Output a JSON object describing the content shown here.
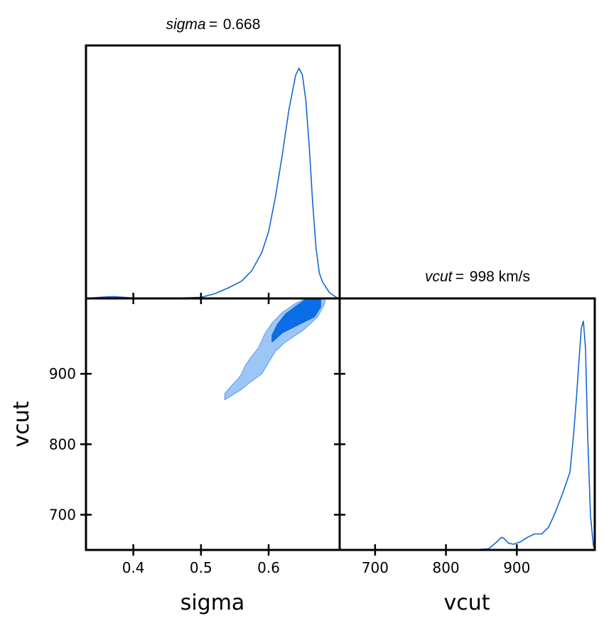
{
  "chart_data": {
    "type": "triangle-corner-plot",
    "parameters": [
      "sigma",
      "vcut"
    ],
    "colors": {
      "line": "#1565d8",
      "inner_contour": "#0a6ee6",
      "outer_contour": "#9cc6f5",
      "frame": "#000000"
    },
    "panels": [
      {
        "id": "sigma-marginal",
        "type": "line",
        "parameter": "sigma",
        "title": {
          "symbol": "sigma",
          "equals": "=",
          "value": "0.668"
        },
        "xlim": [
          0.33,
          0.705
        ],
        "ylim": [
          0,
          1.0
        ],
        "x": [
          0.33,
          0.35,
          0.37,
          0.39,
          0.4,
          0.45,
          0.5,
          0.52,
          0.54,
          0.56,
          0.575,
          0.59,
          0.6,
          0.61,
          0.62,
          0.63,
          0.64,
          0.645,
          0.65,
          0.655,
          0.66,
          0.665,
          0.67,
          0.675,
          0.68,
          0.69,
          0.7,
          0.705
        ],
        "y": [
          0.0,
          0.005,
          0.008,
          0.004,
          0.002,
          0.0,
          0.005,
          0.02,
          0.045,
          0.075,
          0.12,
          0.2,
          0.29,
          0.44,
          0.62,
          0.82,
          0.97,
          1.0,
          0.97,
          0.86,
          0.66,
          0.42,
          0.22,
          0.11,
          0.07,
          0.025,
          0.005,
          0.0
        ]
      },
      {
        "id": "sigma-vcut-joint",
        "type": "contour",
        "x_parameter": "sigma",
        "y_parameter": "vcut",
        "xlim": [
          0.33,
          0.705
        ],
        "ylim": [
          650,
          1007
        ],
        "x_ticks": [
          "0.4",
          "0.5",
          "0.6"
        ],
        "x_tick_values": [
          0.4,
          0.5,
          0.6
        ],
        "y_ticks": [
          "900",
          "800",
          "700"
        ],
        "y_tick_values": [
          900,
          800,
          700
        ],
        "xlabel": "sigma",
        "ylabel": "vcut",
        "outer_contour": [
          [
            0.535,
            863
          ],
          [
            0.56,
            878
          ],
          [
            0.57,
            886
          ],
          [
            0.59,
            900
          ],
          [
            0.6,
            916
          ],
          [
            0.61,
            932
          ],
          [
            0.625,
            945
          ],
          [
            0.65,
            961
          ],
          [
            0.672,
            980
          ],
          [
            0.683,
            1000
          ],
          [
            0.683,
            1007
          ],
          [
            0.655,
            1007
          ],
          [
            0.64,
            1000
          ],
          [
            0.62,
            987
          ],
          [
            0.605,
            972
          ],
          [
            0.595,
            958
          ],
          [
            0.585,
            937
          ],
          [
            0.575,
            925
          ],
          [
            0.565,
            911
          ],
          [
            0.56,
            900
          ],
          [
            0.555,
            893
          ],
          [
            0.545,
            883
          ],
          [
            0.535,
            872
          ]
        ],
        "inner_contour": [
          [
            0.605,
            945
          ],
          [
            0.62,
            958
          ],
          [
            0.645,
            970
          ],
          [
            0.668,
            981
          ],
          [
            0.677,
            995
          ],
          [
            0.677,
            1007
          ],
          [
            0.657,
            1007
          ],
          [
            0.642,
            997
          ],
          [
            0.625,
            985
          ],
          [
            0.613,
            970
          ],
          [
            0.605,
            955
          ]
        ]
      },
      {
        "id": "vcut-marginal",
        "type": "line",
        "parameter": "vcut",
        "title": {
          "symbol": "vcut",
          "equals": "=",
          "value": "998 km/s"
        },
        "xlim": [
          650,
          1010
        ],
        "ylim": [
          0,
          1.0
        ],
        "x_ticks": [
          "700",
          "800",
          "900"
        ],
        "x_tick_values": [
          700,
          800,
          900
        ],
        "xlabel": "vcut",
        "x": [
          650,
          690,
          700,
          710,
          800,
          840,
          860,
          870,
          878,
          882,
          888,
          895,
          905,
          915,
          925,
          935,
          945,
          955,
          965,
          975,
          980,
          984,
          988,
          991,
          994,
          997,
          1000,
          1004,
          1008,
          1010
        ],
        "y": [
          0.0,
          0.002,
          0.002,
          0.0,
          0.0,
          0.001,
          0.005,
          0.03,
          0.055,
          0.05,
          0.03,
          0.025,
          0.035,
          0.055,
          0.07,
          0.07,
          0.1,
          0.17,
          0.25,
          0.34,
          0.5,
          0.66,
          0.84,
          0.97,
          1.0,
          0.88,
          0.5,
          0.15,
          0.02,
          0.0
        ]
      }
    ]
  }
}
